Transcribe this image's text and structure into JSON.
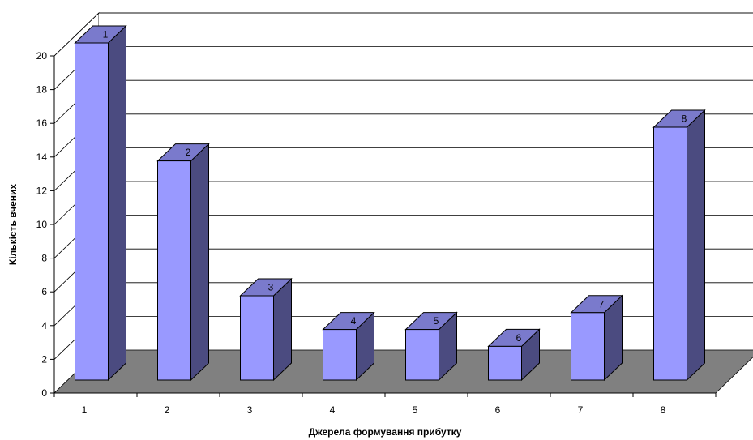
{
  "chart_data": {
    "type": "bar",
    "categories": [
      "1",
      "2",
      "3",
      "4",
      "5",
      "6",
      "7",
      "8"
    ],
    "values": [
      20,
      13,
      5,
      3,
      3,
      2,
      4,
      15
    ],
    "data_labels": [
      "1",
      "2",
      "3",
      "4",
      "5",
      "6",
      "7",
      "8"
    ],
    "xlabel": "Джерела формування прибутку",
    "ylabel": "Кількість вчених",
    "ylim": [
      0,
      20
    ],
    "yticks": [
      0,
      2,
      4,
      6,
      8,
      10,
      12,
      14,
      16,
      18,
      20
    ],
    "grid": true,
    "legend": "none",
    "three_d": true,
    "colors": {
      "bar_front": "#9999FF",
      "bar_side": "#4B4B80",
      "bar_top": "#7A7ACC",
      "floor": "#808080",
      "gridline": "#000000"
    }
  }
}
